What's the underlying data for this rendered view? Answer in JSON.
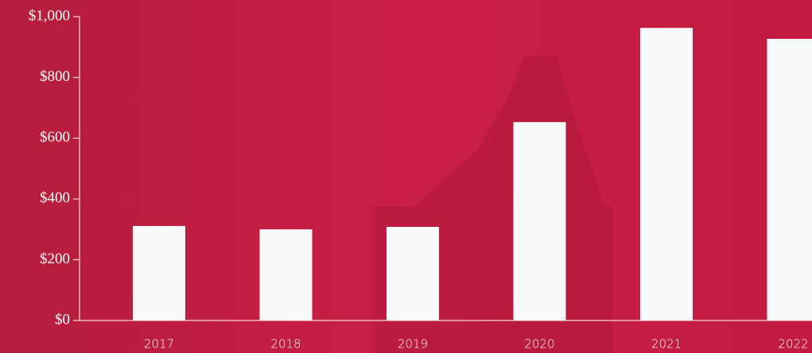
{
  "chart_data": {
    "type": "bar",
    "categories": [
      "2017",
      "2018",
      "2019",
      "2020",
      "2021",
      "2022"
    ],
    "values": [
      311,
      300,
      308,
      653,
      963,
      927
    ],
    "color": "#fbfafa",
    "ylim": [
      0,
      1000
    ],
    "yticks": [
      {
        "value": 0,
        "label": "$0"
      },
      {
        "value": 200,
        "label": "$200"
      },
      {
        "value": 400,
        "label": "$400"
      },
      {
        "value": 600,
        "label": "$600"
      },
      {
        "value": 800,
        "label": "$800"
      },
      {
        "value": 1000,
        "label": "$1,000"
      }
    ]
  }
}
